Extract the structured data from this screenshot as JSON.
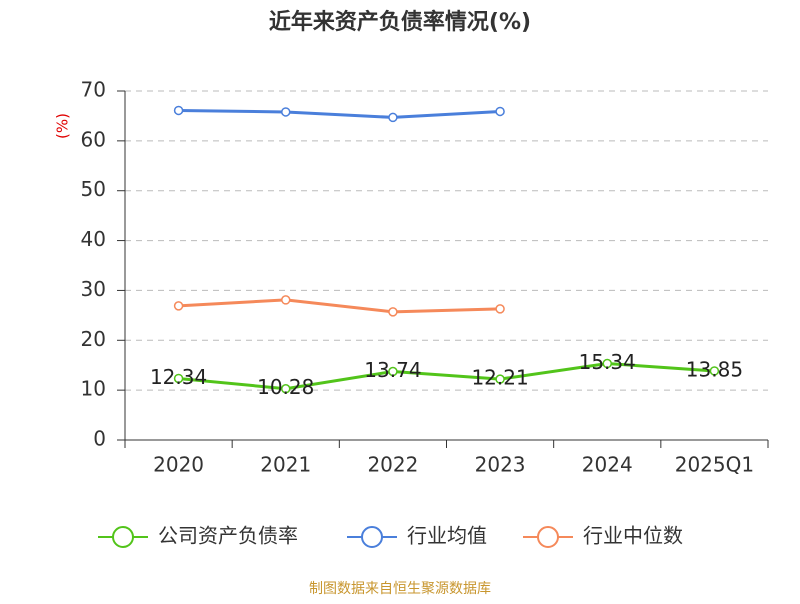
{
  "chart_data": {
    "type": "line",
    "title": "近年来资产负债率情况(%)",
    "y_label": "(%)",
    "categories": [
      "2020",
      "2021",
      "2022",
      "2023",
      "2024",
      "2025Q1"
    ],
    "series": [
      {
        "name": "公司资产负债率",
        "color": "#52c41a",
        "values": [
          12.34,
          10.28,
          13.74,
          12.21,
          15.34,
          13.85
        ],
        "data_labels": true
      },
      {
        "name": "行业均值",
        "color": "#4a7fdb",
        "values": [
          66.1,
          65.8,
          64.7,
          65.9,
          null,
          null
        ],
        "data_labels": false
      },
      {
        "name": "行业中位数",
        "color": "#f5895a",
        "values": [
          26.9,
          28.1,
          25.7,
          26.3,
          null,
          null
        ],
        "data_labels": false
      }
    ],
    "ylim": [
      0,
      70
    ],
    "yticks": [
      0,
      10,
      20,
      30,
      40,
      50,
      60,
      70
    ],
    "grid": true,
    "source": "制图数据来自恒生聚源数据库"
  }
}
